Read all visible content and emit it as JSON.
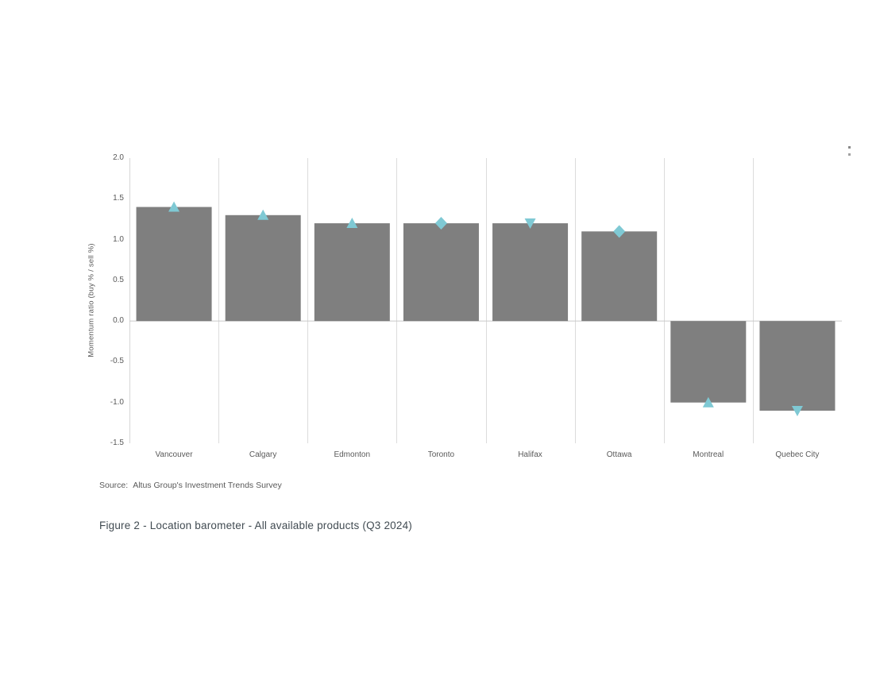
{
  "figure": {
    "source_label": "Source:",
    "source_text": "Altus Group's Investment Trends Survey",
    "caption": "Figure 2  -  Location barometer - All available products (Q3 2024)"
  },
  "chart_data": {
    "type": "bar",
    "title": "",
    "xlabel": "",
    "ylabel": "Momentum ratio  (buy % / sell %)",
    "ylim": [
      -1.5,
      2.0
    ],
    "ytick_labels": [
      "2.0",
      "1.5",
      "1.0",
      "0.5",
      "0.0",
      "-0.5",
      "-1.0",
      "-1.5"
    ],
    "ytick_values": [
      2.0,
      1.5,
      1.0,
      0.5,
      0.0,
      -0.5,
      -1.0,
      -1.5
    ],
    "grid": "vertical category separators, light gray",
    "legend": "none",
    "categories": [
      "Vancouver",
      "Calgary",
      "Edmonton",
      "Toronto",
      "Halifax",
      "Ottawa",
      "Montreal",
      "Quebec City"
    ],
    "values": [
      1.4,
      1.3,
      1.2,
      1.2,
      1.2,
      1.1,
      -1.0,
      -1.1
    ],
    "markers": [
      "triangle-up",
      "triangle-up",
      "triangle-up",
      "diamond",
      "triangle-down",
      "diamond",
      "triangle-up",
      "triangle-down"
    ],
    "bar_color": "#7f7f7f",
    "marker_color": "#7fc9d4",
    "gridline_color": "#dcdcdc",
    "axis_line_color": "#d6d6d6",
    "zero_line_color": "#c9c9c9"
  }
}
